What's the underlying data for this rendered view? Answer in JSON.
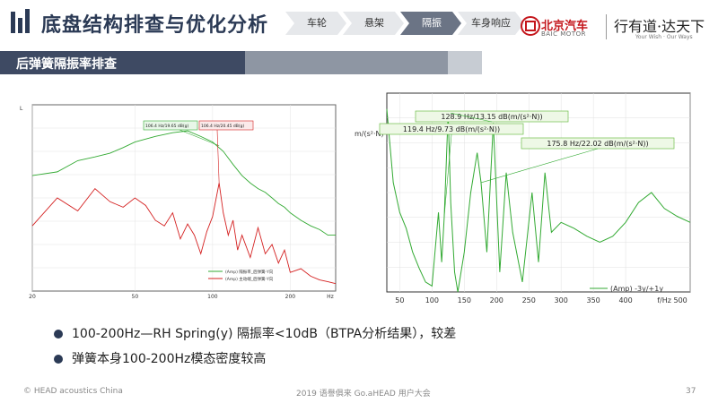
{
  "header": {
    "title": "底盘结构排查与优化分析",
    "nav": [
      "车轮",
      "悬架",
      "隔振",
      "车身响应"
    ],
    "active_nav": 2,
    "brand_name": "北京汽车",
    "brand_sub": "BAIC MOTOR",
    "slogan": "行有道·达天下",
    "slogan_sub": "Your Wish · Our Ways"
  },
  "section": {
    "title": "后弹簧隔振率排查"
  },
  "chart_data": [
    {
      "type": "line",
      "x_ticks": [
        "20",
        "50",
        "100",
        "200",
        "Hz"
      ],
      "y_label": "L",
      "annotations": [
        "106.4 Hz/19.65 dB(g)",
        "106.4 Hz/20.45 dB(g)"
      ],
      "legend": [
        "(Amp) 隔振率_后弹簧-Y向",
        "(Amp) 主动端_后弹簧-Y向"
      ],
      "series": [
        {
          "name": "",
          "color": "#33aa33",
          "x": [
            20,
            25,
            30,
            35,
            40,
            45,
            50,
            60,
            70,
            80,
            90,
            100,
            110,
            120,
            130,
            140,
            150,
            160,
            170,
            180,
            190,
            200,
            220,
            240,
            260,
            280,
            300
          ],
          "y": [
            0.62,
            0.64,
            0.7,
            0.72,
            0.74,
            0.77,
            0.8,
            0.83,
            0.85,
            0.86,
            0.83,
            0.8,
            0.75,
            0.68,
            0.62,
            0.58,
            0.55,
            0.53,
            0.5,
            0.47,
            0.45,
            0.42,
            0.38,
            0.35,
            0.33,
            0.3,
            0.3
          ]
        },
        {
          "name": "",
          "color": "#d42020",
          "x": [
            20,
            25,
            30,
            35,
            40,
            45,
            50,
            55,
            60,
            65,
            70,
            75,
            80,
            85,
            90,
            95,
            100,
            106,
            110,
            115,
            120,
            125,
            130,
            140,
            150,
            160,
            170,
            180,
            190,
            200,
            220,
            240,
            260,
            280,
            300
          ],
          "y": [
            0.35,
            0.5,
            0.43,
            0.55,
            0.48,
            0.45,
            0.5,
            0.46,
            0.38,
            0.35,
            0.42,
            0.28,
            0.36,
            0.3,
            0.2,
            0.32,
            0.4,
            0.58,
            0.42,
            0.3,
            0.38,
            0.22,
            0.3,
            0.18,
            0.34,
            0.2,
            0.25,
            0.15,
            0.22,
            0.1,
            0.12,
            0.08,
            0.06,
            0.05,
            0.04
          ]
        }
      ]
    },
    {
      "type": "line",
      "y_label": "m/(s²·N)",
      "x_ticks": [
        "50",
        "100",
        "150",
        "200",
        "250",
        "300",
        "350",
        "400",
        "f/Hz 500"
      ],
      "xlim": [
        30,
        500
      ],
      "annotations": [
        "128.9 Hz/13.15 dB(m/(s²·N))",
        "119.4 Hz/9.73 dB(m/(s²·N))",
        "175.8 Hz/22.02 dB(m/(s²·N))"
      ],
      "legend": [
        "(Amp) -3y/+1y"
      ],
      "series": [
        {
          "name": "",
          "color": "#33aa33",
          "x": [
            30,
            40,
            50,
            60,
            70,
            80,
            90,
            100,
            110,
            115,
            119,
            125,
            129,
            135,
            140,
            150,
            160,
            170,
            176,
            185,
            195,
            205,
            215,
            225,
            240,
            255,
            265,
            275,
            285,
            300,
            320,
            340,
            360,
            380,
            400,
            420,
            440,
            460,
            480,
            500
          ],
          "y": [
            0.92,
            0.55,
            0.4,
            0.32,
            0.2,
            0.12,
            0.05,
            0.03,
            0.4,
            0.15,
            0.38,
            0.9,
            0.45,
            0.1,
            0.0,
            0.2,
            0.5,
            0.7,
            0.55,
            0.2,
            0.85,
            0.1,
            0.6,
            0.3,
            0.05,
            0.5,
            0.15,
            0.6,
            0.3,
            0.35,
            0.32,
            0.28,
            0.25,
            0.28,
            0.35,
            0.45,
            0.5,
            0.42,
            0.38,
            0.35
          ]
        }
      ]
    }
  ],
  "bullets": [
    "100-200Hz—RH Spring(y) 隔振率<10dB（BTPA分析结果），较差",
    "弹簧本身100-200Hz模态密度较高"
  ],
  "footer": {
    "left": "© HEAD acoustics China",
    "center": "2019 语譽俱来 Go.aHEAD 用户大会",
    "page": "37"
  }
}
